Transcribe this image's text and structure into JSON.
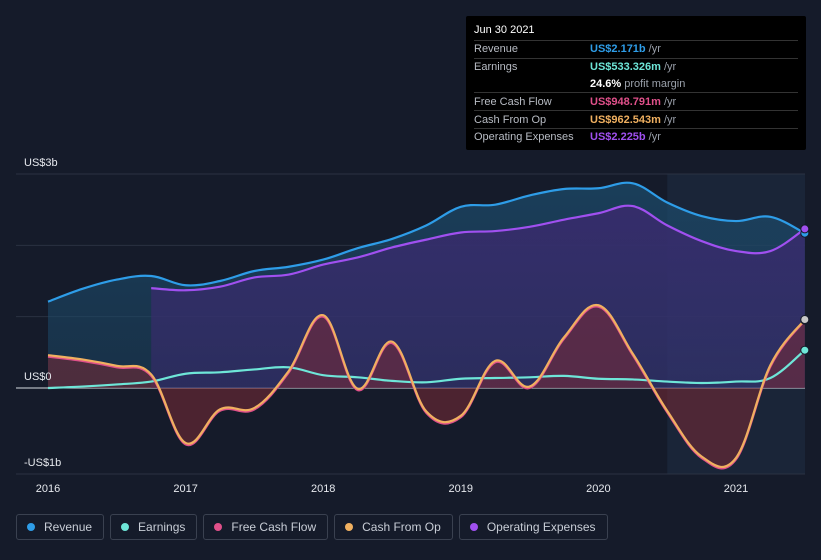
{
  "tooltip": {
    "date": "Jun 30 2021",
    "rows": [
      {
        "label": "Revenue",
        "value": "US$2.171b",
        "unit": "/yr",
        "color": "#2e9de8"
      },
      {
        "label": "Earnings",
        "value": "US$533.326m",
        "unit": "/yr",
        "color": "#6ee6d8"
      },
      {
        "label": "",
        "value": "24.6%",
        "unit": "profit margin",
        "color": "#ffffff"
      },
      {
        "label": "Free Cash Flow",
        "value": "US$948.791m",
        "unit": "/yr",
        "color": "#e0508a"
      },
      {
        "label": "Cash From Op",
        "value": "US$962.543m",
        "unit": "/yr",
        "color": "#f0b060"
      },
      {
        "label": "Operating Expenses",
        "value": "US$2.225b",
        "unit": "/yr",
        "color": "#a050f0"
      }
    ]
  },
  "legend": [
    {
      "label": "Revenue",
      "color": "#2e9de8"
    },
    {
      "label": "Earnings",
      "color": "#6ee6d8"
    },
    {
      "label": "Free Cash Flow",
      "color": "#e0508a"
    },
    {
      "label": "Cash From Op",
      "color": "#f0b060"
    },
    {
      "label": "Operating Expenses",
      "color": "#a050f0"
    }
  ],
  "chart_data": {
    "type": "line",
    "title": "",
    "y_unit": "US$ billions",
    "ylim": [
      -1,
      3
    ],
    "y_ticks": [
      {
        "value": 3,
        "label": "US$3b"
      },
      {
        "value": 0,
        "label": "US$0"
      },
      {
        "value": -1,
        "label": "-US$1b"
      }
    ],
    "xlim": [
      2015.9,
      2021.5
    ],
    "x_ticks": [
      {
        "value": 2016,
        "label": "2016"
      },
      {
        "value": 2017,
        "label": "2017"
      },
      {
        "value": 2018,
        "label": "2018"
      },
      {
        "value": 2019,
        "label": "2019"
      },
      {
        "value": 2020,
        "label": "2020"
      },
      {
        "value": 2021,
        "label": "2021"
      }
    ],
    "forecast_start": 2020.5,
    "series": [
      {
        "name": "Revenue",
        "color": "#2e9de8",
        "x": [
          2016.0,
          2016.25,
          2016.5,
          2016.75,
          2017.0,
          2017.25,
          2017.5,
          2017.75,
          2018.0,
          2018.25,
          2018.5,
          2018.75,
          2019.0,
          2019.25,
          2019.5,
          2019.75,
          2020.0,
          2020.25,
          2020.5,
          2020.75,
          2021.0,
          2021.25,
          2021.5
        ],
        "y": [
          1.21,
          1.39,
          1.52,
          1.57,
          1.44,
          1.5,
          1.64,
          1.7,
          1.8,
          1.96,
          2.09,
          2.28,
          2.54,
          2.57,
          2.7,
          2.79,
          2.8,
          2.87,
          2.6,
          2.41,
          2.34,
          2.4,
          2.17
        ]
      },
      {
        "name": "Earnings",
        "color": "#6ee6d8",
        "x": [
          2016.0,
          2016.25,
          2016.5,
          2016.75,
          2017.0,
          2017.25,
          2017.5,
          2017.75,
          2018.0,
          2018.25,
          2018.5,
          2018.75,
          2019.0,
          2019.25,
          2019.5,
          2019.75,
          2020.0,
          2020.25,
          2020.5,
          2020.75,
          2021.0,
          2021.25,
          2021.5
        ],
        "y": [
          0.0,
          0.02,
          0.05,
          0.09,
          0.2,
          0.22,
          0.26,
          0.29,
          0.18,
          0.15,
          0.1,
          0.08,
          0.13,
          0.14,
          0.15,
          0.17,
          0.13,
          0.12,
          0.09,
          0.07,
          0.09,
          0.14,
          0.53
        ]
      },
      {
        "name": "Free Cash Flow",
        "color": "#e0508a",
        "x": [
          2016.0,
          2016.25,
          2016.5,
          2016.75,
          2017.0,
          2017.25,
          2017.5,
          2017.75,
          2018.0,
          2018.25,
          2018.5,
          2018.75,
          2019.0,
          2019.25,
          2019.5,
          2019.75,
          2020.0,
          2020.25,
          2020.5,
          2020.75,
          2021.0,
          2021.25,
          2021.5
        ],
        "y": [
          0.44,
          0.38,
          0.29,
          0.17,
          -0.79,
          -0.32,
          -0.3,
          0.22,
          1.0,
          -0.03,
          0.63,
          -0.35,
          -0.41,
          0.36,
          0.0,
          0.69,
          1.14,
          0.46,
          -0.34,
          -0.98,
          -1.0,
          0.3,
          0.95
        ]
      },
      {
        "name": "Cash From Op",
        "color": "#f0b060",
        "x": [
          2016.0,
          2016.25,
          2016.5,
          2016.75,
          2017.0,
          2017.25,
          2017.5,
          2017.75,
          2018.0,
          2018.25,
          2018.5,
          2018.75,
          2019.0,
          2019.25,
          2019.5,
          2019.75,
          2020.0,
          2020.25,
          2020.5,
          2020.75,
          2021.0,
          2021.25,
          2021.5
        ],
        "y": [
          0.46,
          0.4,
          0.31,
          0.19,
          -0.77,
          -0.3,
          -0.28,
          0.24,
          1.02,
          -0.01,
          0.65,
          -0.33,
          -0.39,
          0.38,
          0.02,
          0.71,
          1.16,
          0.48,
          -0.32,
          -0.96,
          -0.98,
          0.32,
          0.96
        ]
      },
      {
        "name": "Operating Expenses",
        "color": "#a050f0",
        "x": [
          2016.75,
          2017.0,
          2017.25,
          2017.5,
          2017.75,
          2018.0,
          2018.25,
          2018.5,
          2018.75,
          2019.0,
          2019.25,
          2019.5,
          2019.75,
          2020.0,
          2020.25,
          2020.5,
          2020.75,
          2021.0,
          2021.25,
          2021.5
        ],
        "y": [
          1.4,
          1.37,
          1.42,
          1.55,
          1.59,
          1.73,
          1.83,
          1.97,
          2.08,
          2.18,
          2.2,
          2.26,
          2.36,
          2.45,
          2.55,
          2.28,
          2.06,
          1.92,
          1.92,
          2.23
        ]
      }
    ]
  }
}
